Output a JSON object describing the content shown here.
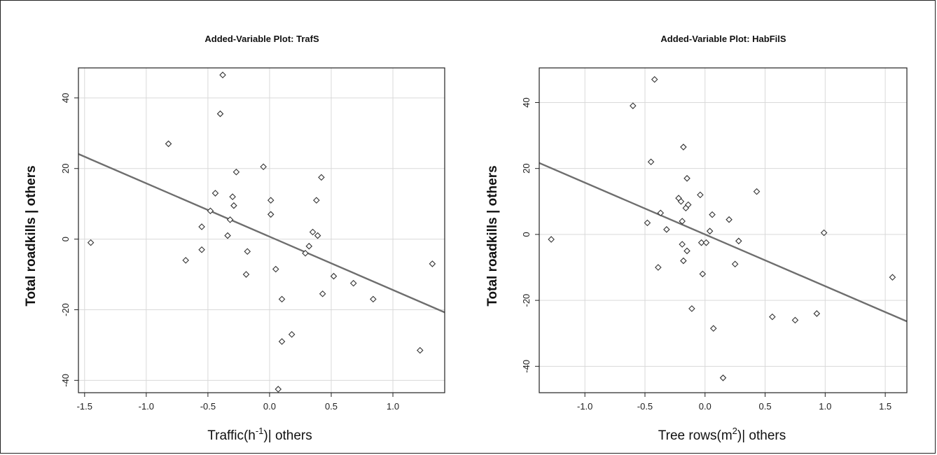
{
  "chart_data": [
    {
      "type": "scatter",
      "title": "Added-Variable Plot: TrafS",
      "xlabel_main": "Traffic(h",
      "xlabel_sup": "-1",
      "xlabel_rest": ")| others",
      "ylabel": "Total roadkills | others",
      "xlim": [
        -1.55,
        1.42
      ],
      "ylim": [
        -43.5,
        48.5
      ],
      "xticks": [
        -1.5,
        -1.0,
        -0.5,
        0.0,
        0.5,
        1.0
      ],
      "xtick_labels": [
        "-1.5",
        "-1.0",
        "-0.5",
        "0.0",
        "0.5",
        "1.0"
      ],
      "yticks": [
        -40,
        -20,
        0,
        20,
        40
      ],
      "ytick_labels": [
        "-40",
        "-20",
        "0",
        "20",
        "40"
      ],
      "grid": true,
      "fit_line": {
        "slope": -15.1,
        "intercept": 0.7
      },
      "points": [
        {
          "x": -1.45,
          "y": -1
        },
        {
          "x": -0.82,
          "y": 27
        },
        {
          "x": -0.68,
          "y": -6
        },
        {
          "x": -0.55,
          "y": 3.5
        },
        {
          "x": -0.55,
          "y": -3
        },
        {
          "x": -0.48,
          "y": 8
        },
        {
          "x": -0.44,
          "y": 13
        },
        {
          "x": -0.4,
          "y": 35.5
        },
        {
          "x": -0.38,
          "y": 46.5
        },
        {
          "x": -0.34,
          "y": 1
        },
        {
          "x": -0.32,
          "y": 5.5
        },
        {
          "x": -0.3,
          "y": 12
        },
        {
          "x": -0.29,
          "y": 9.5
        },
        {
          "x": -0.27,
          "y": 19
        },
        {
          "x": -0.19,
          "y": -10
        },
        {
          "x": -0.18,
          "y": -3.5
        },
        {
          "x": -0.05,
          "y": 20.5
        },
        {
          "x": 0.01,
          "y": 7
        },
        {
          "x": 0.01,
          "y": 11
        },
        {
          "x": 0.05,
          "y": -8.5
        },
        {
          "x": 0.07,
          "y": -42.5
        },
        {
          "x": 0.1,
          "y": -17
        },
        {
          "x": 0.1,
          "y": -29
        },
        {
          "x": 0.18,
          "y": -27
        },
        {
          "x": 0.29,
          "y": -4
        },
        {
          "x": 0.32,
          "y": -2
        },
        {
          "x": 0.35,
          "y": 2
        },
        {
          "x": 0.38,
          "y": 11
        },
        {
          "x": 0.39,
          "y": 1
        },
        {
          "x": 0.42,
          "y": 17.5
        },
        {
          "x": 0.43,
          "y": -15.5
        },
        {
          "x": 0.52,
          "y": -10.5
        },
        {
          "x": 0.68,
          "y": -12.5
        },
        {
          "x": 0.84,
          "y": -17
        },
        {
          "x": 1.22,
          "y": -31.5
        },
        {
          "x": 1.32,
          "y": -7
        }
      ]
    },
    {
      "type": "scatter",
      "title": "Added-Variable Plot: HabFilS",
      "xlabel_main": "Tree rows(m",
      "xlabel_sup": "2",
      "xlabel_rest": ")| others",
      "ylabel": "Total roadkills | others",
      "xlim": [
        -1.38,
        1.68
      ],
      "ylim": [
        -48,
        50.5
      ],
      "xticks": [
        -1.0,
        -0.5,
        0.0,
        0.5,
        1.0,
        1.5
      ],
      "xtick_labels": [
        "-1.0",
        "-0.5",
        "0.0",
        "0.5",
        "1.0",
        "1.5"
      ],
      "yticks": [
        -40,
        -20,
        0,
        20,
        40
      ],
      "ytick_labels": [
        "-40",
        "-20",
        "0",
        "20",
        "40"
      ],
      "grid": true,
      "fit_line": {
        "slope": -15.7,
        "intercept": 0
      },
      "points": [
        {
          "x": -1.28,
          "y": -1.5
        },
        {
          "x": -0.6,
          "y": 39
        },
        {
          "x": -0.48,
          "y": 3.5
        },
        {
          "x": -0.45,
          "y": 22
        },
        {
          "x": -0.42,
          "y": 47
        },
        {
          "x": -0.39,
          "y": -10
        },
        {
          "x": -0.37,
          "y": 6.5
        },
        {
          "x": -0.32,
          "y": 1.5
        },
        {
          "x": -0.22,
          "y": 11
        },
        {
          "x": -0.2,
          "y": 10
        },
        {
          "x": -0.19,
          "y": 4
        },
        {
          "x": -0.18,
          "y": 26.5
        },
        {
          "x": -0.19,
          "y": -3
        },
        {
          "x": -0.18,
          "y": -8
        },
        {
          "x": -0.16,
          "y": 8
        },
        {
          "x": -0.15,
          "y": 17
        },
        {
          "x": -0.15,
          "y": -5
        },
        {
          "x": -0.14,
          "y": 9
        },
        {
          "x": -0.11,
          "y": -22.5
        },
        {
          "x": -0.04,
          "y": 12
        },
        {
          "x": -0.03,
          "y": -2.5
        },
        {
          "x": -0.02,
          "y": -12
        },
        {
          "x": 0.01,
          "y": -2.5
        },
        {
          "x": 0.04,
          "y": 1
        },
        {
          "x": 0.06,
          "y": 6
        },
        {
          "x": 0.07,
          "y": -28.5
        },
        {
          "x": 0.15,
          "y": -43.5
        },
        {
          "x": 0.2,
          "y": 4.5
        },
        {
          "x": 0.25,
          "y": -9
        },
        {
          "x": 0.28,
          "y": -2
        },
        {
          "x": 0.43,
          "y": 13
        },
        {
          "x": 0.56,
          "y": -25
        },
        {
          "x": 0.75,
          "y": -26
        },
        {
          "x": 0.93,
          "y": -24
        },
        {
          "x": 0.99,
          "y": 0.5
        },
        {
          "x": 1.56,
          "y": -13
        }
      ]
    }
  ]
}
